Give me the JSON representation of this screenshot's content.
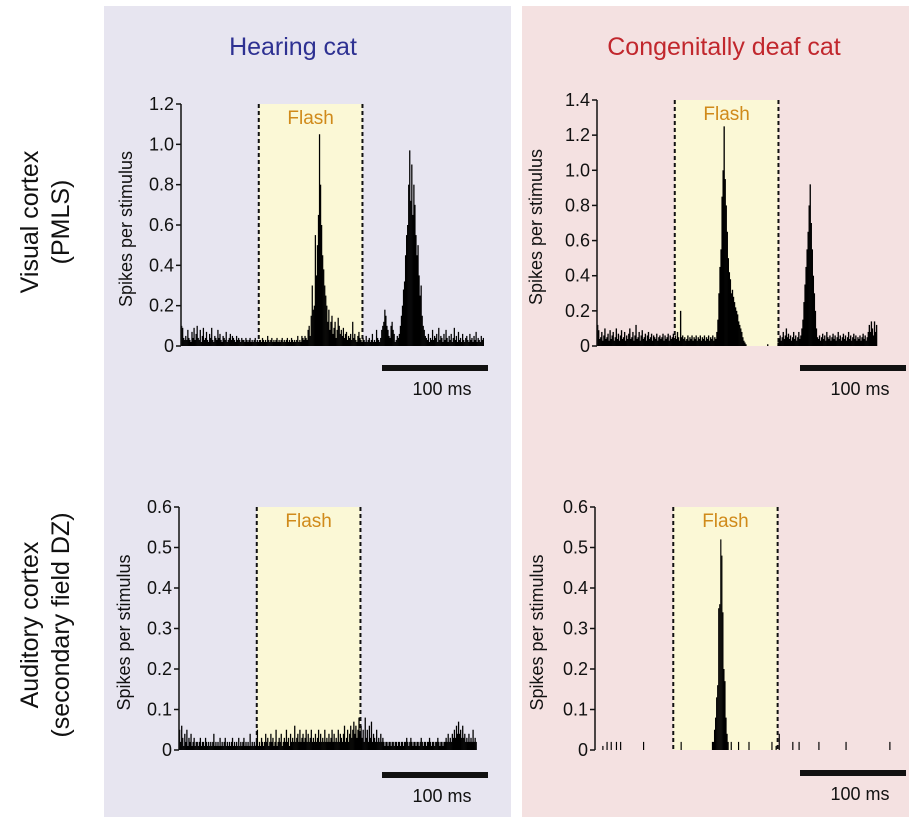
{
  "row_labels": {
    "visual_line1": "Visual cortex",
    "visual_line2": "(PMLS)",
    "auditory_line1": "Auditory cortex",
    "auditory_line2": "(secondary field DZ)"
  },
  "column_titles": {
    "hearing": "Hearing cat",
    "deaf": "Congenitally deaf cat"
  },
  "colors": {
    "hearing_bg": "#e7e5f0",
    "deaf_bg": "#f4e1e1",
    "hearing_title": "#2e3192",
    "deaf_title": "#c1272d",
    "flash_fill": "#fbf8d6",
    "flash_text": "#d08a1a",
    "bars": "#000000"
  },
  "chart_data": [
    {
      "id": "hearing-visual",
      "type": "bar",
      "ylabel": "Spikes per stimulus",
      "ylim": [
        0,
        1.2
      ],
      "yticks": [
        "0",
        "0.2",
        "0.4",
        "0.6",
        "0.8",
        "1.0",
        "1.2"
      ],
      "flash_label": "Flash",
      "flash_window_ms": [
        150,
        350
      ],
      "scale_bar_label": "100 ms",
      "bin_ms": 2,
      "xlim_ms": [
        0,
        596
      ],
      "values": [
        0.1,
        0.09,
        0.04,
        0.03,
        0.05,
        0.03,
        0.08,
        0.04,
        0.03,
        0.02,
        0.07,
        0.04,
        0.09,
        0.03,
        0.06,
        0.1,
        0.04,
        0.03,
        0.08,
        0.02,
        0.05,
        0.09,
        0.03,
        0.04,
        0.07,
        0.03,
        0.02,
        0.06,
        0.04,
        0.09,
        0.03,
        0.02,
        0.05,
        0.04,
        0.03,
        0.08,
        0.04,
        0.06,
        0.03,
        0.02,
        0.05,
        0.04,
        0.03,
        0.07,
        0.02,
        0.03,
        0.04,
        0.06,
        0.03,
        0.05,
        0.04,
        0.03,
        0.02,
        0.05,
        0.03,
        0.04,
        0.03,
        0.02,
        0.04,
        0.03,
        0.03,
        0.02,
        0.04,
        0.03,
        0.02,
        0.03,
        0.04,
        0.02,
        0.03,
        0.02,
        0.03,
        0.04,
        0.02,
        0.03,
        0.02,
        0.03,
        0.03,
        0.02,
        0.04,
        0.03,
        0.02,
        0.03,
        0.02,
        0.05,
        0.03,
        0.02,
        0.03,
        0.04,
        0.02,
        0.03,
        0.02,
        0.03,
        0.04,
        0.02,
        0.03,
        0.02,
        0.03,
        0.04,
        0.02,
        0.03,
        0.02,
        0.03,
        0.04,
        0.02,
        0.03,
        0.02,
        0.04,
        0.03,
        0.02,
        0.03,
        0.02,
        0.03,
        0.05,
        0.02,
        0.03,
        0.02,
        0.05,
        0.04,
        0.03,
        0.05,
        0.04,
        0.03,
        0.08,
        0.1,
        0.05,
        0.15,
        0.3,
        0.18,
        0.2,
        0.55,
        0.35,
        0.5,
        0.65,
        1.05,
        0.8,
        0.6,
        0.45,
        0.38,
        0.3,
        0.25,
        0.2,
        0.12,
        0.18,
        0.08,
        0.12,
        0.15,
        0.06,
        0.09,
        0.12,
        0.04,
        0.08,
        0.14,
        0.1,
        0.06,
        0.08,
        0.05,
        0.09,
        0.04,
        0.06,
        0.07,
        0.03,
        0.05,
        0.04,
        0.06,
        0.03,
        0.12,
        0.04,
        0.06,
        0.03,
        0.02,
        0.05,
        0.07,
        0.04,
        0.03,
        0.02,
        0.04,
        0.03,
        0.02,
        0.05,
        0.02,
        0.03,
        0.04,
        0.02,
        0.03,
        0.06,
        0.02,
        0.03,
        0.02,
        0.08,
        0.04,
        0.03,
        0.02,
        0.04,
        0.08,
        0.1,
        0.12,
        0.18,
        0.15,
        0.1,
        0.08,
        0.05,
        0.04,
        0.1,
        0.12,
        0.08,
        0.06,
        0.02,
        0.03,
        0.05,
        0.04,
        0.06,
        0.1,
        0.15,
        0.2,
        0.28,
        0.32,
        0.45,
        0.55,
        0.6,
        0.8,
        0.97,
        0.72,
        0.9,
        0.65,
        0.8,
        0.7,
        0.55,
        0.45,
        0.5,
        0.35,
        0.25,
        0.3,
        0.15,
        0.1,
        0.08,
        0.05,
        0.04,
        0.03,
        0.06,
        0.02,
        0.04,
        0.03,
        0.08,
        0.03,
        0.05,
        0.04,
        0.06,
        0.02,
        0.09,
        0.03,
        0.05,
        0.04,
        0.02,
        0.06,
        0.03,
        0.08,
        0.04,
        0.02,
        0.05,
        0.03,
        0.06,
        0.02,
        0.04,
        0.09,
        0.03,
        0.05,
        0.02,
        0.07,
        0.03,
        0.04,
        0.02,
        0.06,
        0.03,
        0.02,
        0.04,
        0.05,
        0.03,
        0.02,
        0.06,
        0.03,
        0.04,
        0.02,
        0.05,
        0.03,
        0.07,
        0.02,
        0.04,
        0.03,
        0.02,
        0.05,
        0.03,
        0.04
      ]
    },
    {
      "id": "deaf-visual",
      "type": "bar",
      "ylabel": "Spikes per stimulus",
      "ylim": [
        0,
        1.4
      ],
      "yticks": [
        "0",
        "0.2",
        "0.4",
        "0.6",
        "0.8",
        "1.0",
        "1.2",
        "1.4"
      ],
      "flash_label": "Flash",
      "flash_window_ms": [
        150,
        350
      ],
      "scale_bar_label": "100 ms",
      "bin_ms": 2,
      "xlim_ms": [
        0,
        596
      ],
      "values": [
        0.12,
        0.09,
        0.04,
        0.05,
        0.08,
        0.03,
        0.06,
        0.1,
        0.04,
        0.05,
        0.07,
        0.03,
        0.09,
        0.04,
        0.06,
        0.08,
        0.03,
        0.05,
        0.1,
        0.04,
        0.07,
        0.03,
        0.06,
        0.09,
        0.04,
        0.05,
        0.08,
        0.03,
        0.06,
        0.04,
        0.07,
        0.1,
        0.04,
        0.05,
        0.08,
        0.03,
        0.06,
        0.12,
        0.04,
        0.05,
        0.08,
        0.03,
        0.06,
        0.09,
        0.04,
        0.05,
        0.07,
        0.03,
        0.06,
        0.08,
        0.04,
        0.05,
        0.07,
        0.03,
        0.06,
        0.05,
        0.04,
        0.07,
        0.03,
        0.05,
        0.06,
        0.04,
        0.05,
        0.07,
        0.03,
        0.06,
        0.04,
        0.05,
        0.07,
        0.03,
        0.06,
        0.04,
        0.05,
        0.07,
        0.03,
        0.06,
        0.04,
        0.08,
        0.05,
        0.03,
        0.2,
        0.05,
        0.06,
        0.04,
        0.05,
        0.03,
        0.04,
        0.06,
        0.03,
        0.05,
        0.04,
        0.06,
        0.03,
        0.05,
        0.04,
        0.06,
        0.03,
        0.05,
        0.04,
        0.06,
        0.03,
        0.05,
        0.04,
        0.06,
        0.03,
        0.05,
        0.04,
        0.06,
        0.03,
        0.05,
        0.04,
        0.06,
        0.03,
        0.05,
        0.04,
        0.08,
        0.15,
        0.3,
        0.45,
        0.55,
        0.85,
        1.0,
        1.25,
        0.95,
        0.8,
        0.65,
        0.5,
        0.42,
        0.38,
        0.3,
        0.32,
        0.28,
        0.25,
        0.22,
        0.2,
        0.18,
        0.14,
        0.12,
        0.1,
        0.08,
        0.05,
        0.03,
        0.02,
        0.01,
        0,
        0,
        0,
        0,
        0,
        0,
        0,
        0,
        0,
        0,
        0,
        0,
        0,
        0,
        0,
        0,
        0,
        0,
        0,
        0,
        0.01,
        0,
        0,
        0,
        0,
        0,
        0,
        0,
        0,
        0,
        0.02,
        0.04,
        0.06,
        0.03,
        0.05,
        0.08,
        0.04,
        0.06,
        0.1,
        0.05,
        0.07,
        0.04,
        0.06,
        0.03,
        0.05,
        0.08,
        0.04,
        0.06,
        0.03,
        0.05,
        0.08,
        0.04,
        0.06,
        0.1,
        0.15,
        0.25,
        0.35,
        0.45,
        0.55,
        0.65,
        0.8,
        0.92,
        0.7,
        0.55,
        0.4,
        0.3,
        0.2,
        0.1,
        0.05,
        0.04,
        0.06,
        0.03,
        0.05,
        0.07,
        0.04,
        0.06,
        0.03,
        0.08,
        0.05,
        0.04,
        0.06,
        0.03,
        0.05,
        0.07,
        0.04,
        0.06,
        0.03,
        0.05,
        0.08,
        0.04,
        0.06,
        0.03,
        0.05,
        0.07,
        0.04,
        0.06,
        0.03,
        0.05,
        0.08,
        0.04,
        0.06,
        0.03,
        0.05,
        0.07,
        0.04,
        0.06,
        0.03,
        0.05,
        0.04,
        0.06,
        0.03,
        0.05,
        0.07,
        0.04,
        0.06,
        0.03,
        0.05,
        0.08,
        0.12,
        0.08,
        0.14,
        0.1,
        0.06,
        0.14,
        0.08,
        0.12
      ]
    },
    {
      "id": "hearing-auditory",
      "type": "bar",
      "ylabel": "Spikes per stimulus",
      "ylim": [
        0,
        0.6
      ],
      "yticks": [
        "0",
        "0.1",
        "0.2",
        "0.3",
        "0.4",
        "0.5",
        "0.6"
      ],
      "flash_label": "Flash",
      "flash_window_ms": [
        150,
        350
      ],
      "scale_bar_label": "100 ms",
      "bin_ms": 2,
      "xlim_ms": [
        0,
        596
      ],
      "values": [
        0.05,
        0.02,
        0.06,
        0.03,
        0.01,
        0.04,
        0.02,
        0.05,
        0.01,
        0.03,
        0.02,
        0.04,
        0.01,
        0.02,
        0.03,
        0.01,
        0.02,
        0.02,
        0.01,
        0.02,
        0.03,
        0.01,
        0.02,
        0.02,
        0.01,
        0.03,
        0.02,
        0.01,
        0.02,
        0.01,
        0.02,
        0.01,
        0.02,
        0.04,
        0.01,
        0.02,
        0.01,
        0.02,
        0.01,
        0.03,
        0.01,
        0.02,
        0.01,
        0.02,
        0.03,
        0.01,
        0.02,
        0.01,
        0.02,
        0.01,
        0.02,
        0.03,
        0.01,
        0.02,
        0.01,
        0.02,
        0.01,
        0.03,
        0.01,
        0.02,
        0.01,
        0.02,
        0.03,
        0.01,
        0.02,
        0.01,
        0.02,
        0.01,
        0.04,
        0.01,
        0.02,
        0.01,
        0.02,
        0.01,
        0.02,
        0.05,
        0.01,
        0.02,
        0.01,
        0.03,
        0.02,
        0.01,
        0.02,
        0.04,
        0.02,
        0.03,
        0.01,
        0.02,
        0.04,
        0.02,
        0.03,
        0.01,
        0.02,
        0.05,
        0.01,
        0.02,
        0.03,
        0.02,
        0.04,
        0.01,
        0.02,
        0.03,
        0.02,
        0.05,
        0.02,
        0.03,
        0.01,
        0.04,
        0.02,
        0.03,
        0.02,
        0.06,
        0.02,
        0.03,
        0.04,
        0.02,
        0.05,
        0.02,
        0.03,
        0.04,
        0.02,
        0.03,
        0.05,
        0.02,
        0.04,
        0.02,
        0.03,
        0.05,
        0.02,
        0.03,
        0.02,
        0.04,
        0.02,
        0.03,
        0.05,
        0.02,
        0.04,
        0.02,
        0.03,
        0.02,
        0.05,
        0.02,
        0.03,
        0.02,
        0.04,
        0.02,
        0.03,
        0.05,
        0.02,
        0.04,
        0.02,
        0.03,
        0.02,
        0.05,
        0.02,
        0.04,
        0.03,
        0.02,
        0.04,
        0.06,
        0.02,
        0.03,
        0.05,
        0.02,
        0.04,
        0.06,
        0.03,
        0.05,
        0.07,
        0.04,
        0.06,
        0.03,
        0.05,
        0.08,
        0.04,
        0.06,
        0.03,
        0.05,
        0.02,
        0.08,
        0.03,
        0.05,
        0.02,
        0.06,
        0.03,
        0.07,
        0.02,
        0.04,
        0.03,
        0.02,
        0.05,
        0.02,
        0.03,
        0.02,
        0.04,
        0.02,
        0.03,
        0.02,
        0.01,
        0.02,
        0.02,
        0.01,
        0.02,
        0.02,
        0.01,
        0.02,
        0.02,
        0.01,
        0.02,
        0.02,
        0.01,
        0.02,
        0.02,
        0.01,
        0.02,
        0.02,
        0.01,
        0.02,
        0.02,
        0.03,
        0.02,
        0.01,
        0.02,
        0.03,
        0.02,
        0.01,
        0.02,
        0.02,
        0.01,
        0.02,
        0.02,
        0.01,
        0.02,
        0.03,
        0.02,
        0.01,
        0.02,
        0.02,
        0.01,
        0.02,
        0.02,
        0.03,
        0.02,
        0.01,
        0.02,
        0.02,
        0.01,
        0.02,
        0.02,
        0.03,
        0.02,
        0.01,
        0.02,
        0.02,
        0.01,
        0.02,
        0.02,
        0.03,
        0.02,
        0.04,
        0.02,
        0.03,
        0.02,
        0.04,
        0.03,
        0.05,
        0.03,
        0.06,
        0.04,
        0.07,
        0.04,
        0.05,
        0.03,
        0.06,
        0.03,
        0.04,
        0.02,
        0.03,
        0.02,
        0.04,
        0.02,
        0.03,
        0.02,
        0.05,
        0.02,
        0.03,
        0.02
      ]
    },
    {
      "id": "deaf-auditory",
      "type": "bar",
      "ylabel": "Spikes per stimulus",
      "ylim": [
        0,
        0.6
      ],
      "yticks": [
        "0",
        "0.1",
        "0.2",
        "0.3",
        "0.4",
        "0.5",
        "0.6"
      ],
      "flash_label": "Flash",
      "flash_window_ms": [
        150,
        350
      ],
      "scale_bar_label": "100 ms",
      "bin_ms": 2,
      "xlim_ms": [
        0,
        596
      ],
      "values": [
        0,
        0,
        0,
        0,
        0,
        0,
        0,
        0.01,
        0,
        0,
        0,
        0.02,
        0,
        0,
        0,
        0.02,
        0,
        0,
        0,
        0,
        0.02,
        0,
        0,
        0,
        0.02,
        0,
        0,
        0,
        0,
        0,
        0,
        0,
        0,
        0,
        0,
        0,
        0,
        0,
        0,
        0,
        0,
        0,
        0,
        0,
        0,
        0,
        0.02,
        0,
        0,
        0,
        0,
        0,
        0,
        0,
        0,
        0,
        0,
        0,
        0,
        0,
        0,
        0,
        0,
        0,
        0,
        0,
        0,
        0,
        0,
        0,
        0,
        0,
        0,
        0,
        0,
        0,
        0,
        0,
        0,
        0,
        0,
        0,
        0.02,
        0,
        0,
        0,
        0,
        0,
        0,
        0,
        0,
        0,
        0,
        0,
        0,
        0,
        0,
        0,
        0,
        0,
        0,
        0,
        0,
        0,
        0,
        0,
        0,
        0,
        0,
        0,
        0,
        0,
        0.02,
        0.02,
        0.05,
        0.08,
        0.13,
        0.16,
        0.35,
        0.36,
        0.52,
        0.48,
        0.34,
        0.2,
        0.17,
        0.08,
        0.04,
        0.02,
        0,
        0,
        0.02,
        0,
        0,
        0,
        0,
        0,
        0,
        0.02,
        0,
        0,
        0,
        0,
        0,
        0,
        0,
        0,
        0,
        0.02,
        0,
        0,
        0,
        0,
        0,
        0,
        0,
        0,
        0,
        0,
        0,
        0,
        0,
        0,
        0,
        0,
        0,
        0,
        0,
        0,
        0,
        0.02,
        0,
        0,
        0,
        0.01,
        0,
        0,
        0.04,
        0,
        0,
        0,
        0,
        0,
        0,
        0,
        0,
        0,
        0,
        0,
        0,
        0.02,
        0,
        0,
        0,
        0,
        0,
        0.02,
        0,
        0,
        0,
        0,
        0,
        0,
        0,
        0,
        0,
        0,
        0,
        0,
        0,
        0,
        0,
        0,
        0,
        0,
        0.02,
        0,
        0,
        0,
        0,
        0,
        0,
        0,
        0,
        0,
        0,
        0,
        0,
        0,
        0,
        0,
        0,
        0,
        0,
        0,
        0,
        0,
        0,
        0,
        0,
        0,
        0.02,
        0,
        0,
        0,
        0,
        0,
        0,
        0,
        0,
        0,
        0,
        0,
        0,
        0,
        0,
        0,
        0,
        0,
        0,
        0,
        0,
        0,
        0,
        0,
        0,
        0,
        0,
        0,
        0,
        0,
        0,
        0,
        0,
        0,
        0,
        0,
        0,
        0,
        0,
        0,
        0,
        0,
        0.02,
        0,
        0,
        0,
        0,
        0,
        0,
        0,
        0,
        0,
        0,
        0,
        0,
        0,
        0,
        0,
        0,
        0,
        0,
        0,
        0,
        0,
        0,
        0,
        0,
        0,
        0,
        0,
        0,
        0,
        0.02,
        0,
        0,
        0,
        0,
        0,
        0,
        0,
        0,
        0.01
      ]
    }
  ]
}
